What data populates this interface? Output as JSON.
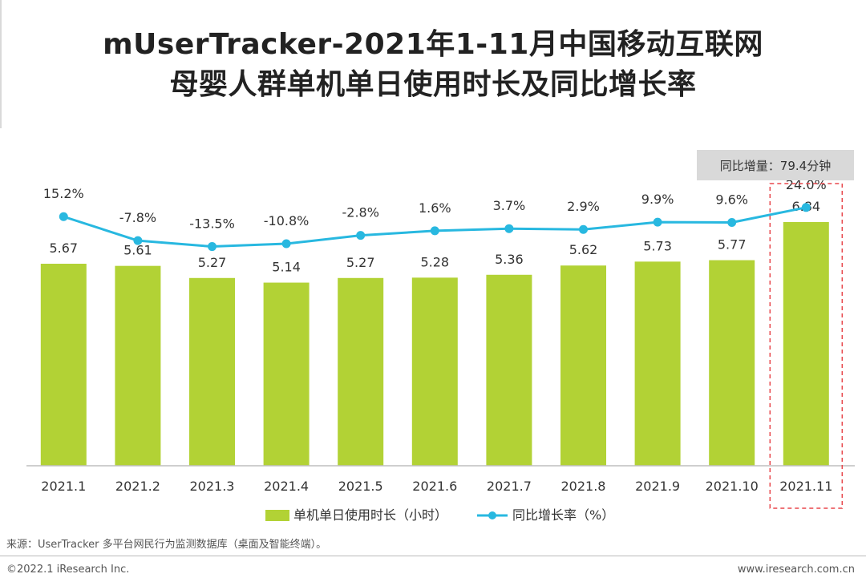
{
  "title_line1": "mUserTracker-2021年1-11月中国移动互联网",
  "title_line2": "母婴人群单机单日使用时长及同比增长率",
  "callout": "同比增量：79.4分钟",
  "source": "来源：UserTracker 多平台网民行为监测数据库（桌面及智能终端）。",
  "copyright": "©2022.1 iResearch Inc.",
  "website": "www.iresearch.com.cn",
  "colors": {
    "bar": "#b2d235",
    "line": "#28b8e0",
    "highlight": "#e8474c"
  },
  "chart_data": {
    "type": "bar+line",
    "categories": [
      "2021.1",
      "2021.2",
      "2021.3",
      "2021.4",
      "2021.5",
      "2021.6",
      "2021.7",
      "2021.8",
      "2021.9",
      "2021.10",
      "2021.11"
    ],
    "series": [
      {
        "name": "单机单日使用时长（小时）",
        "type": "bar",
        "values": [
          5.67,
          5.61,
          5.27,
          5.14,
          5.27,
          5.28,
          5.36,
          5.62,
          5.73,
          5.77,
          6.84
        ],
        "labels": [
          "5.67",
          "5.61",
          "5.27",
          "5.14",
          "5.27",
          "5.28",
          "5.36",
          "5.62",
          "5.73",
          "5.77",
          "6.84"
        ]
      },
      {
        "name": "同比增长率（%）",
        "type": "line",
        "values": [
          15.2,
          -7.8,
          -13.5,
          -10.8,
          -2.8,
          1.6,
          3.7,
          2.9,
          9.9,
          9.6,
          24.0
        ],
        "labels": [
          "15.2%",
          "-7.8%",
          "-13.5%",
          "-10.8%",
          "-2.8%",
          "1.6%",
          "3.7%",
          "2.9%",
          "9.9%",
          "9.6%",
          "24.0%"
        ]
      }
    ],
    "bar_ylim": [
      0,
      7.65
    ],
    "line_ylim": [
      -100,
      200
    ],
    "legend": "bottom-center",
    "grid": false,
    "highlight_category": "2021.11"
  }
}
